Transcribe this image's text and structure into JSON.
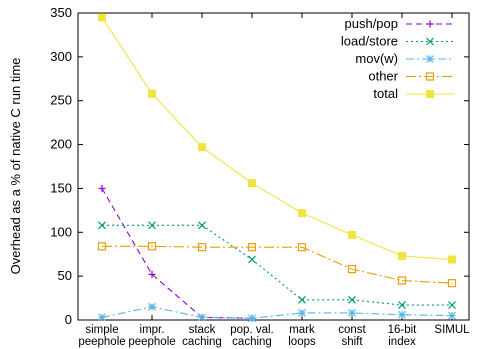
{
  "chart_data": {
    "type": "line",
    "title": "",
    "ylabel": "Overhead as a % of native C run time",
    "xlabel": "",
    "ylim": [
      0,
      350
    ],
    "yticks": [
      0,
      50,
      100,
      150,
      200,
      250,
      300,
      350
    ],
    "categories": [
      [
        "simple",
        "peephole"
      ],
      [
        "impr.",
        "peephole"
      ],
      [
        "stack",
        "caching"
      ],
      [
        "pop. val.",
        "caching"
      ],
      [
        "mark",
        "loops"
      ],
      [
        "const",
        "shift"
      ],
      [
        "16-bit",
        "index"
      ],
      [
        "SIMUL"
      ]
    ],
    "legend_position": "top-right",
    "series": [
      {
        "name": "push/pop",
        "color": "#9400d3",
        "marker": "plus",
        "dash": "6,4",
        "values": [
          150,
          52,
          3,
          2,
          null,
          null,
          null,
          null
        ]
      },
      {
        "name": "load/store",
        "color": "#009e73",
        "marker": "cross",
        "dash": "2,3",
        "values": [
          108,
          108,
          108,
          69,
          23,
          23,
          17,
          17
        ]
      },
      {
        "name": "mov(w)",
        "color": "#56b4e9",
        "marker": "star",
        "dash": "8,3,2,3",
        "values": [
          3,
          15,
          3,
          2,
          8,
          8,
          6,
          5
        ]
      },
      {
        "name": "other",
        "color": "#e69f00",
        "marker": "open-square",
        "dash": "10,3,2,3",
        "values": [
          84,
          84,
          83,
          83,
          83,
          58,
          45,
          42
        ]
      },
      {
        "name": "total",
        "color": "#f0e442",
        "marker": "filled-square",
        "dash": "",
        "values": [
          345,
          258,
          197,
          156,
          122,
          97,
          73,
          69
        ]
      }
    ]
  }
}
